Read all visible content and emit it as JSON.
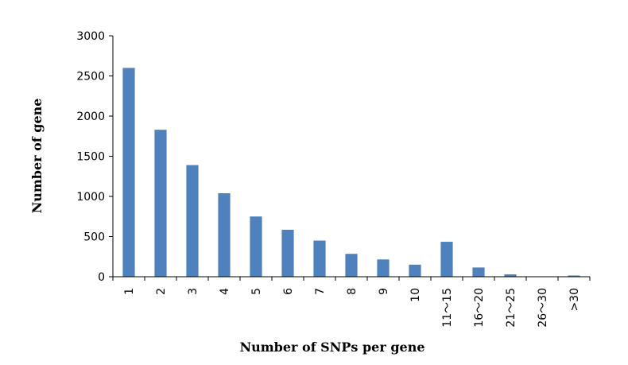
{
  "chart_data": {
    "type": "bar",
    "title": "",
    "xlabel": "Number of  SNPs per gene",
    "ylabel": "Number of gene",
    "categories": [
      "1",
      "2",
      "3",
      "4",
      "5",
      "6",
      "7",
      "8",
      "9",
      "10",
      "11～15",
      "16～20",
      "21～25",
      "26～30",
      ">30"
    ],
    "values": [
      2600,
      1830,
      1390,
      1040,
      750,
      585,
      450,
      285,
      215,
      150,
      435,
      115,
      30,
      0,
      15
    ],
    "ylim": [
      0,
      3000
    ],
    "yticks": [
      0,
      500,
      1000,
      1500,
      2000,
      2500,
      3000
    ],
    "grid": false,
    "legend": "none",
    "bar_color": "#4F81BD",
    "axis_color": "#000000"
  }
}
